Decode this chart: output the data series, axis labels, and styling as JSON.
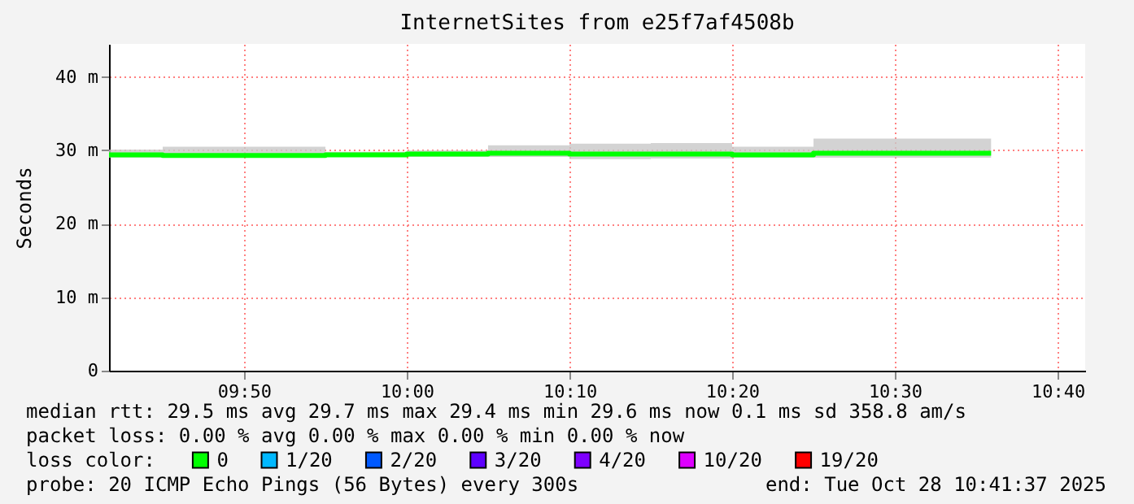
{
  "chart_data": {
    "type": "step",
    "title": "InternetSites from e25f7af4508b",
    "ylabel": "Seconds",
    "legend_title": "loss color:",
    "x": [
      9.695,
      9.75,
      9.9167,
      10.0,
      10.0833,
      10.1667,
      10.25,
      10.3333,
      10.4167,
      10.5986
    ],
    "series": [
      {
        "name": "0",
        "color": "#00ff00",
        "values": [
          29.4,
          29.3,
          29.4,
          29.5,
          29.6,
          29.5,
          29.5,
          29.4,
          29.6,
          29.6
        ],
        "lower": [
          29.0,
          29.0,
          29.1,
          29.1,
          29.1,
          28.8,
          28.9,
          29.0,
          29.0,
          29.0
        ],
        "upper": [
          30.1,
          30.5,
          29.8,
          30.0,
          30.7,
          30.9,
          31.0,
          30.5,
          31.6,
          31.6
        ]
      },
      {
        "name": "1/20",
        "color": "#00b8ff",
        "values": [
          null,
          null,
          null,
          null,
          null,
          null,
          null,
          null,
          null,
          null
        ]
      },
      {
        "name": "2/20",
        "color": "#0059ff",
        "values": [
          null,
          null,
          null,
          null,
          null,
          null,
          null,
          null,
          null,
          null
        ]
      },
      {
        "name": "3/20",
        "color": "#5e00ff",
        "values": [
          null,
          null,
          null,
          null,
          null,
          null,
          null,
          null,
          null,
          null
        ]
      },
      {
        "name": "4/20",
        "color": "#7e00ff",
        "values": [
          null,
          null,
          null,
          null,
          null,
          null,
          null,
          null,
          null,
          null
        ]
      },
      {
        "name": "10/20",
        "color": "#dd00ff",
        "values": [
          null,
          null,
          null,
          null,
          null,
          null,
          null,
          null,
          null,
          null
        ]
      },
      {
        "name": "19/20",
        "color": "#ff0000",
        "values": [
          null,
          null,
          null,
          null,
          null,
          null,
          null,
          null,
          null,
          null
        ]
      }
    ],
    "xlim": [
      9.695,
      10.695
    ],
    "xticks": [
      {
        "value": 9.8333,
        "label": "09:50"
      },
      {
        "value": 10.0,
        "label": "10:00"
      },
      {
        "value": 10.1667,
        "label": "10:10"
      },
      {
        "value": 10.3333,
        "label": "10:20"
      },
      {
        "value": 10.5,
        "label": "10:30"
      },
      {
        "value": 10.6667,
        "label": "10:40"
      }
    ],
    "ylim": [
      0,
      44.5
    ],
    "yticks": [
      0,
      {
        "value": 10,
        "label": "10 m"
      },
      {
        "value": 20,
        "label": "20 m"
      },
      {
        "value": 30,
        "label": "30 m"
      },
      {
        "value": 40,
        "label": "40 m"
      }
    ],
    "grid": true,
    "legend": "bottom",
    "annotations": [
      "median rtt:  29.5 ms avg  29.7 ms max  29.4 ms min  29.6 ms now  0.1 ms sd  358.8   am/s",
      "packet loss: 0.00 % avg  0.00 % max  0.00 % min  0.00 % now",
      "probe:       20 ICMP Echo Pings (56 Bytes) every 300s",
      "end: Tue Oct 28 10:41:37 2025"
    ]
  }
}
